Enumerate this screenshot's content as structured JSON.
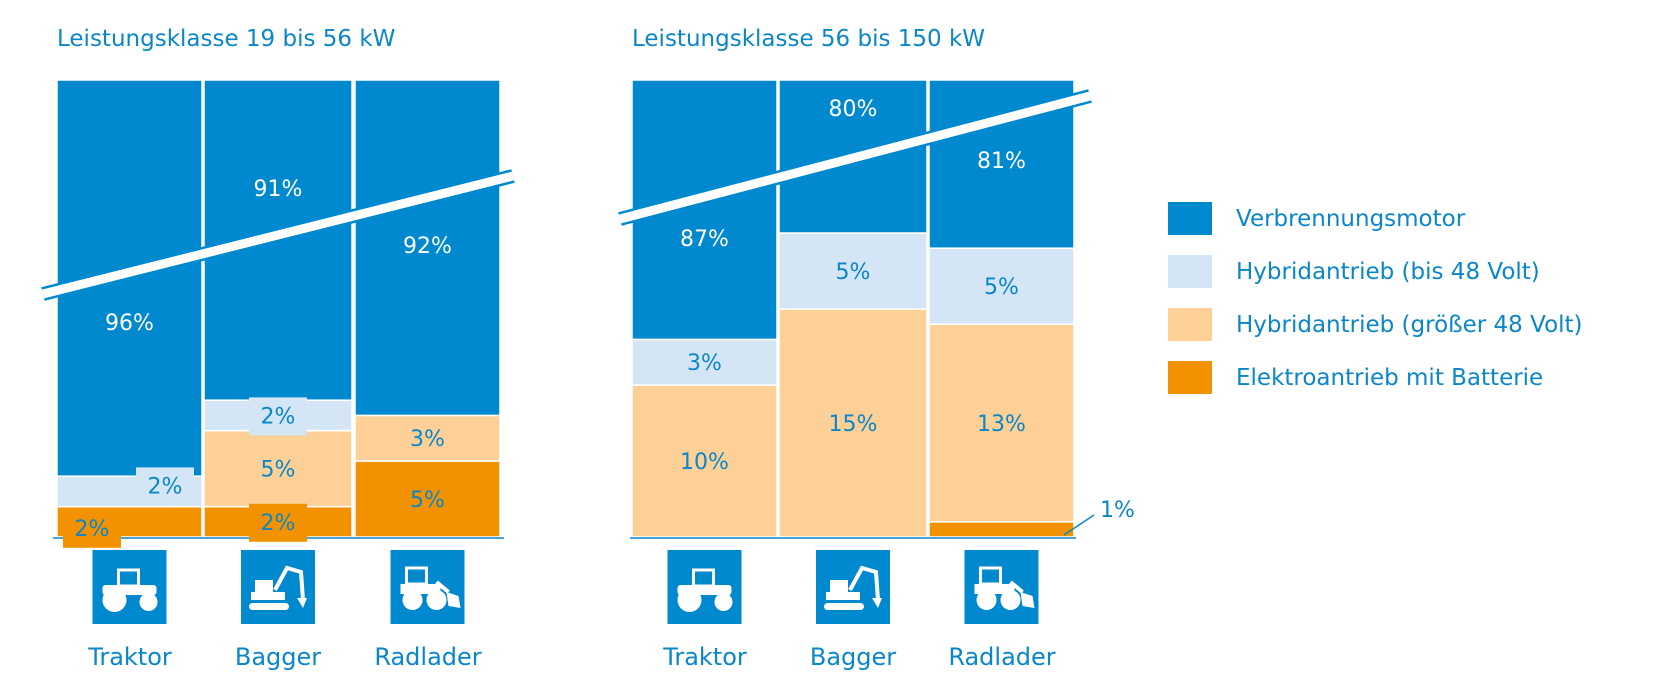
{
  "colors": {
    "verbrennung": "#0089cf",
    "hybrid_low": "#d4e6f5",
    "hybrid_high": "#fcd097",
    "elektro": "#f39200",
    "text": "#0a86c9"
  },
  "legend": [
    {
      "key": "verbrennung",
      "label": "Verbrennungsmotor"
    },
    {
      "key": "hybrid_low",
      "label": "Hybridantrieb (bis 48 Volt)"
    },
    {
      "key": "hybrid_high",
      "label": "Hybridantrieb (größer 48 Volt)"
    },
    {
      "key": "elektro",
      "label": "Elektroantrieb mit Batterie"
    }
  ],
  "chart_data": [
    {
      "type": "bar",
      "stacked": true,
      "broken_axis": true,
      "title": "Leistungsklasse 19 bis 56 kW",
      "categories": [
        "Traktor",
        "Bagger",
        "Radlader"
      ],
      "category_icons": [
        "tractor-icon",
        "excavator-icon",
        "wheel-loader-icon"
      ],
      "series": [
        {
          "name": "Elektroantrieb mit Batterie",
          "key": "elektro",
          "values": [
            2,
            2,
            5
          ],
          "labels": [
            "2%",
            "2%",
            "5%"
          ]
        },
        {
          "name": "Hybridantrieb (größer 48 Volt)",
          "key": "hybrid_high",
          "values": [
            0,
            5,
            3
          ],
          "labels": [
            "",
            "5%",
            "3%"
          ]
        },
        {
          "name": "Hybridantrieb (bis 48 Volt)",
          "key": "hybrid_low",
          "values": [
            2,
            2,
            0
          ],
          "labels": [
            "2%",
            "2%",
            ""
          ]
        },
        {
          "name": "Verbrennungsmotor",
          "key": "verbrennung",
          "values": [
            96,
            91,
            92
          ],
          "labels": [
            "96%",
            "91%",
            "92%"
          ]
        }
      ]
    },
    {
      "type": "bar",
      "stacked": true,
      "broken_axis": true,
      "title": "Leistungsklasse 56 bis 150 kW",
      "categories": [
        "Traktor",
        "Bagger",
        "Radlader"
      ],
      "category_icons": [
        "tractor-icon",
        "excavator-icon",
        "wheel-loader-icon"
      ],
      "series": [
        {
          "name": "Elektroantrieb mit Batterie",
          "key": "elektro",
          "values": [
            0,
            0,
            1
          ],
          "labels": [
            "",
            "",
            "1%"
          ]
        },
        {
          "name": "Hybridantrieb (größer 48 Volt)",
          "key": "hybrid_high",
          "values": [
            10,
            15,
            13
          ],
          "labels": [
            "10%",
            "15%",
            "13%"
          ]
        },
        {
          "name": "Hybridantrieb (bis 48 Volt)",
          "key": "hybrid_low",
          "values": [
            3,
            5,
            5
          ],
          "labels": [
            "3%",
            "5%",
            "5%"
          ]
        },
        {
          "name": "Verbrennungsmotor",
          "key": "verbrennung",
          "values": [
            87,
            80,
            81
          ],
          "labels": [
            "87%",
            "80%",
            "81%"
          ]
        }
      ]
    }
  ]
}
